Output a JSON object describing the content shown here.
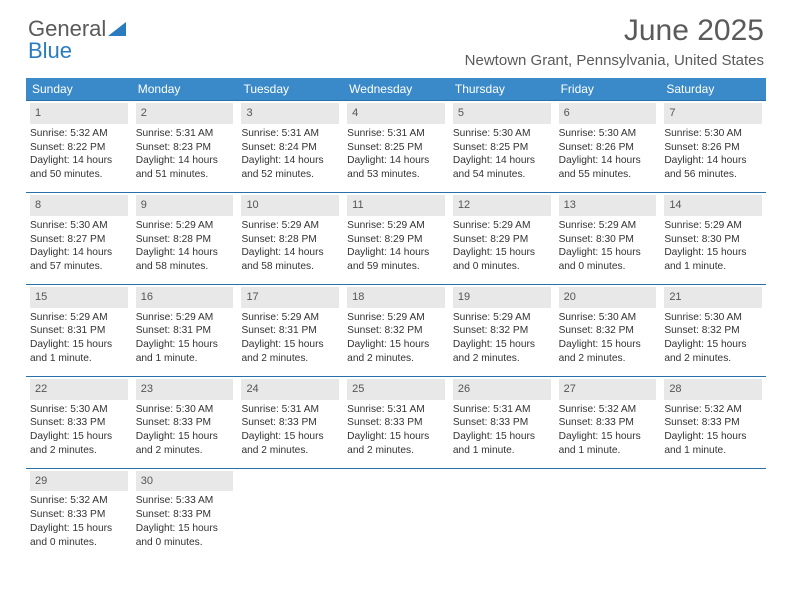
{
  "logo": {
    "text1": "General",
    "text2": "Blue"
  },
  "title": "June 2025",
  "subtitle": "Newtown Grant, Pennsylvania, United States",
  "colors": {
    "header_bg": "#3a8ac9",
    "header_text": "#ffffff",
    "week_border": "#2b6fa8",
    "daynum_bg": "#e8e8e8",
    "logo_gray": "#5a5a5a",
    "logo_blue": "#2b7bbf",
    "body_text": "#333333",
    "page_bg": "#ffffff"
  },
  "fonts": {
    "title_size_pt": 22,
    "subtitle_size_pt": 11,
    "header_size_pt": 9,
    "cell_size_pt": 7.6
  },
  "weekdays": [
    "Sunday",
    "Monday",
    "Tuesday",
    "Wednesday",
    "Thursday",
    "Friday",
    "Saturday"
  ],
  "days": [
    {
      "n": "1",
      "sr": "5:32 AM",
      "ss": "8:22 PM",
      "dl": "14 hours and 50 minutes."
    },
    {
      "n": "2",
      "sr": "5:31 AM",
      "ss": "8:23 PM",
      "dl": "14 hours and 51 minutes."
    },
    {
      "n": "3",
      "sr": "5:31 AM",
      "ss": "8:24 PM",
      "dl": "14 hours and 52 minutes."
    },
    {
      "n": "4",
      "sr": "5:31 AM",
      "ss": "8:25 PM",
      "dl": "14 hours and 53 minutes."
    },
    {
      "n": "5",
      "sr": "5:30 AM",
      "ss": "8:25 PM",
      "dl": "14 hours and 54 minutes."
    },
    {
      "n": "6",
      "sr": "5:30 AM",
      "ss": "8:26 PM",
      "dl": "14 hours and 55 minutes."
    },
    {
      "n": "7",
      "sr": "5:30 AM",
      "ss": "8:26 PM",
      "dl": "14 hours and 56 minutes."
    },
    {
      "n": "8",
      "sr": "5:30 AM",
      "ss": "8:27 PM",
      "dl": "14 hours and 57 minutes."
    },
    {
      "n": "9",
      "sr": "5:29 AM",
      "ss": "8:28 PM",
      "dl": "14 hours and 58 minutes."
    },
    {
      "n": "10",
      "sr": "5:29 AM",
      "ss": "8:28 PM",
      "dl": "14 hours and 58 minutes."
    },
    {
      "n": "11",
      "sr": "5:29 AM",
      "ss": "8:29 PM",
      "dl": "14 hours and 59 minutes."
    },
    {
      "n": "12",
      "sr": "5:29 AM",
      "ss": "8:29 PM",
      "dl": "15 hours and 0 minutes."
    },
    {
      "n": "13",
      "sr": "5:29 AM",
      "ss": "8:30 PM",
      "dl": "15 hours and 0 minutes."
    },
    {
      "n": "14",
      "sr": "5:29 AM",
      "ss": "8:30 PM",
      "dl": "15 hours and 1 minute."
    },
    {
      "n": "15",
      "sr": "5:29 AM",
      "ss": "8:31 PM",
      "dl": "15 hours and 1 minute."
    },
    {
      "n": "16",
      "sr": "5:29 AM",
      "ss": "8:31 PM",
      "dl": "15 hours and 1 minute."
    },
    {
      "n": "17",
      "sr": "5:29 AM",
      "ss": "8:31 PM",
      "dl": "15 hours and 2 minutes."
    },
    {
      "n": "18",
      "sr": "5:29 AM",
      "ss": "8:32 PM",
      "dl": "15 hours and 2 minutes."
    },
    {
      "n": "19",
      "sr": "5:29 AM",
      "ss": "8:32 PM",
      "dl": "15 hours and 2 minutes."
    },
    {
      "n": "20",
      "sr": "5:30 AM",
      "ss": "8:32 PM",
      "dl": "15 hours and 2 minutes."
    },
    {
      "n": "21",
      "sr": "5:30 AM",
      "ss": "8:32 PM",
      "dl": "15 hours and 2 minutes."
    },
    {
      "n": "22",
      "sr": "5:30 AM",
      "ss": "8:33 PM",
      "dl": "15 hours and 2 minutes."
    },
    {
      "n": "23",
      "sr": "5:30 AM",
      "ss": "8:33 PM",
      "dl": "15 hours and 2 minutes."
    },
    {
      "n": "24",
      "sr": "5:31 AM",
      "ss": "8:33 PM",
      "dl": "15 hours and 2 minutes."
    },
    {
      "n": "25",
      "sr": "5:31 AM",
      "ss": "8:33 PM",
      "dl": "15 hours and 2 minutes."
    },
    {
      "n": "26",
      "sr": "5:31 AM",
      "ss": "8:33 PM",
      "dl": "15 hours and 1 minute."
    },
    {
      "n": "27",
      "sr": "5:32 AM",
      "ss": "8:33 PM",
      "dl": "15 hours and 1 minute."
    },
    {
      "n": "28",
      "sr": "5:32 AM",
      "ss": "8:33 PM",
      "dl": "15 hours and 1 minute."
    },
    {
      "n": "29",
      "sr": "5:32 AM",
      "ss": "8:33 PM",
      "dl": "15 hours and 0 minutes."
    },
    {
      "n": "30",
      "sr": "5:33 AM",
      "ss": "8:33 PM",
      "dl": "15 hours and 0 minutes."
    }
  ],
  "labels": {
    "sunrise": "Sunrise: ",
    "sunset": "Sunset: ",
    "daylight": "Daylight: "
  }
}
